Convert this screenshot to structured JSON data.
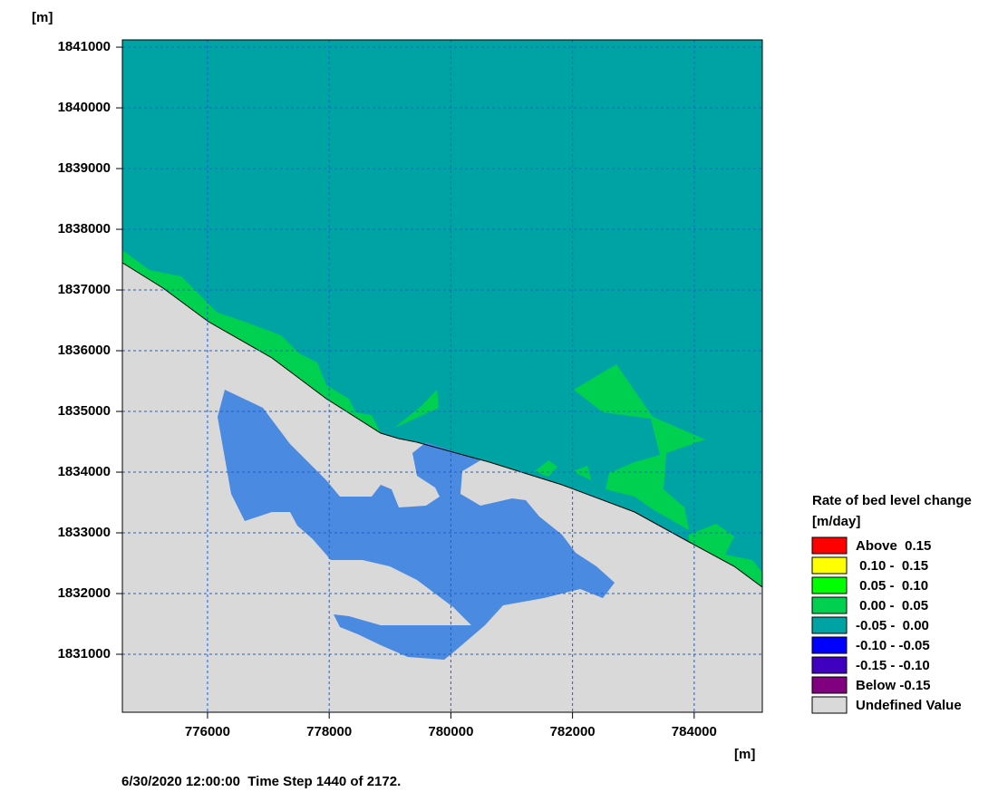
{
  "chart_data": {
    "type": "map",
    "x_unit": "[m]",
    "y_unit": "[m]",
    "xlim": [
      774600,
      785120
    ],
    "ylim": [
      1830045,
      1841120
    ],
    "xticks": [
      776000,
      778000,
      780000,
      782000,
      784000
    ],
    "yticks": [
      1831000,
      1832000,
      1833000,
      1834000,
      1835000,
      1836000,
      1837000,
      1838000,
      1839000,
      1840000,
      1841000
    ],
    "grid": true,
    "legend": {
      "title": "Rate of bed level change",
      "unit": "[m/day]",
      "items": [
        {
          "label": "Above  0.15",
          "color": "#ff0000"
        },
        {
          "label": " 0.10 -  0.15",
          "color": "#ffff00"
        },
        {
          "label": " 0.05 -  0.10",
          "color": "#00ff00"
        },
        {
          "label": " 0.00 -  0.05",
          "color": "#00d050"
        },
        {
          "label": "-0.05 -  0.00",
          "color": "#00a3a3"
        },
        {
          "label": "-0.10 - -0.05",
          "color": "#0000ff"
        },
        {
          "label": "-0.15 - -0.10",
          "color": "#4000c0"
        },
        {
          "label": "Below -0.15",
          "color": "#800080"
        },
        {
          "label": "Undefined Value",
          "color": "#d9d9d9"
        }
      ]
    },
    "footer": "6/30/2020 12:00:00  Time Step 1440 of 2172."
  }
}
